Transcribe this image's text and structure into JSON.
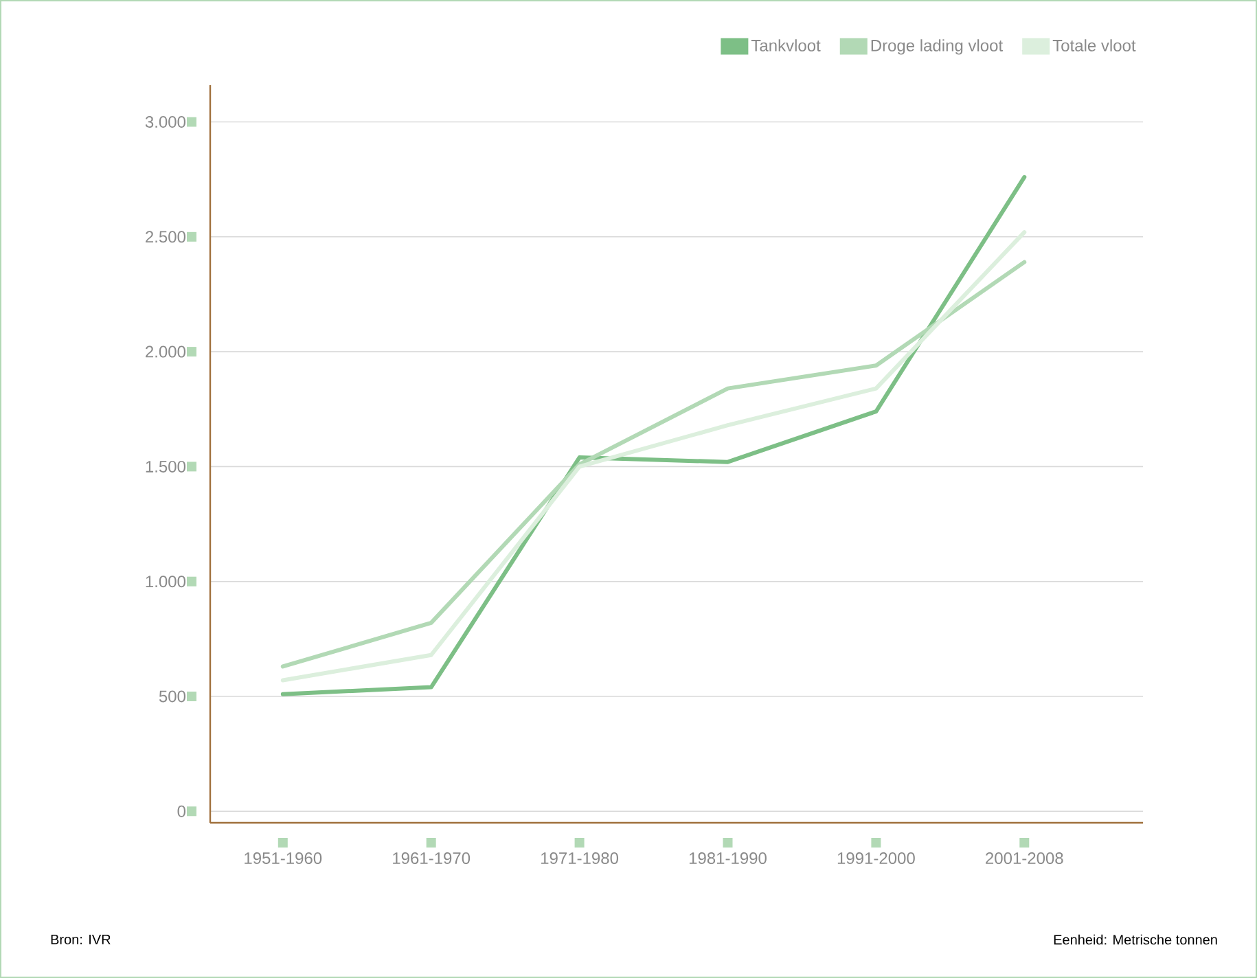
{
  "chart_data": {
    "type": "line",
    "categories": [
      "1951-1960",
      "1961-1970",
      "1971-1980",
      "1981-1990",
      "1991-2000",
      "2001-2008"
    ],
    "series": [
      {
        "name": "Tankvloot",
        "color": "#7dbf86",
        "values": [
          510,
          540,
          1540,
          1520,
          1740,
          2760
        ]
      },
      {
        "name": "Droge lading vloot",
        "color": "#b2d9b5",
        "values": [
          630,
          820,
          1510,
          1840,
          1940,
          2390
        ]
      },
      {
        "name": "Totale vloot",
        "color": "#dcefdd",
        "values": [
          570,
          680,
          1500,
          1680,
          1840,
          2520
        ]
      }
    ],
    "ylim": [
      -50,
      3160
    ],
    "yticks": [
      0,
      500,
      {
        "value": 1000,
        "label": "1.000"
      },
      {
        "value": 1500,
        "label": "1.500"
      },
      {
        "value": 2000,
        "label": "2.000"
      },
      {
        "value": 2500,
        "label": "2.500"
      },
      {
        "value": 3000,
        "label": "3.000"
      }
    ],
    "grid": "y",
    "legend": "top right",
    "marker": "none",
    "line_style": "solid",
    "annotations": [
      "Bron: IVR",
      "Eenheid: Metrische tonnen"
    ]
  }
}
